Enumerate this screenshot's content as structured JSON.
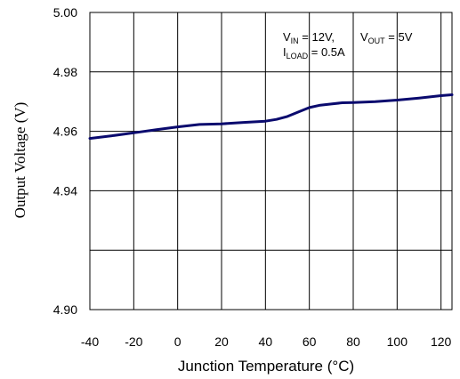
{
  "chart_data": {
    "type": "line",
    "title": "",
    "xlabel": "Junction Temperature (°C)",
    "ylabel": "Output Voltage (V)",
    "xlim": [
      -40,
      125
    ],
    "ylim": [
      4.9,
      5.0
    ],
    "x_ticks": [
      "-40",
      "-20",
      "0",
      "20",
      "40",
      "60",
      "80",
      "100",
      "120"
    ],
    "x_tick_values": [
      -40,
      -20,
      0,
      20,
      40,
      60,
      80,
      100,
      120
    ],
    "y_ticks": [
      "4.90",
      "",
      "4.94",
      "4.96",
      "4.98",
      "5.00"
    ],
    "y_tick_values": [
      4.9,
      4.92,
      4.94,
      4.96,
      4.98,
      5.0
    ],
    "grid": true,
    "annotation": {
      "line1_a_main": "V",
      "line1_a_sub": "IN",
      "line1_a_rest": " = 12V,",
      "line1_b_main": "V",
      "line1_b_sub": "OUT",
      "line1_b_rest": " = 5V",
      "line2_main": "I",
      "line2_sub": "LOAD",
      "line2_rest": " = 0.5A"
    },
    "series": [
      {
        "color": "#0a0a6e",
        "x": [
          -40,
          -30,
          -20,
          -10,
          0,
          10,
          20,
          30,
          40,
          45,
          50,
          55,
          60,
          65,
          70,
          75,
          80,
          90,
          100,
          110,
          120,
          125
        ],
        "y": [
          4.9576,
          4.9585,
          4.9595,
          4.9605,
          4.9615,
          4.9623,
          4.9625,
          4.963,
          4.9634,
          4.964,
          4.965,
          4.9665,
          4.968,
          4.9688,
          4.9692,
          4.9696,
          4.9697,
          4.97,
          4.9705,
          4.9712,
          4.972,
          4.9723
        ]
      }
    ]
  }
}
